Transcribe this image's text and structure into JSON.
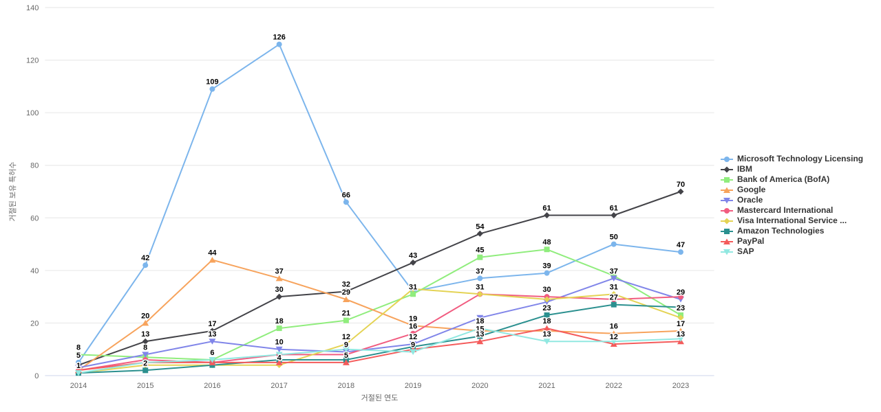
{
  "chart": {
    "y_axis_title": "거절된 보유 특허수",
    "x_axis_title": "거절된 연도",
    "y_tick_labels": [
      "0",
      "20",
      "40",
      "60",
      "80",
      "100",
      "120",
      "140"
    ],
    "x_tick_labels": [
      "2014",
      "2015",
      "2016",
      "2017",
      "2018",
      "2019",
      "2020",
      "2021",
      "2022",
      "2023"
    ],
    "grid_color": "#e6e6e6",
    "axis_line_color": "#ccd6eb",
    "tick_label_color": "#666666",
    "axis_title_color": "#666666",
    "data_label_color": "#000000",
    "legend_text_color": "#333333"
  },
  "chart_data": {
    "type": "line",
    "title": "",
    "xlabel": "거절된 연도",
    "ylabel": "거절된 보유 특허수",
    "ylim": [
      0,
      140
    ],
    "y_ticks": [
      0,
      20,
      40,
      60,
      80,
      100,
      120,
      140
    ],
    "grid": "horizontal",
    "legend_position": "right",
    "categories": [
      "2014",
      "2015",
      "2016",
      "2017",
      "2018",
      "2019",
      "2020",
      "2021",
      "2022",
      "2023"
    ],
    "series": [
      {
        "name": "Microsoft Technology Licensing",
        "color": "#7cb5ec",
        "marker": "circle",
        "values": [
          5,
          42,
          109,
          126,
          66,
          32,
          37,
          39,
          50,
          47
        ],
        "labeled": [
          1,
          1,
          1,
          1,
          1,
          0,
          1,
          1,
          1,
          1
        ]
      },
      {
        "name": "IBM",
        "color": "#434348",
        "marker": "diamond",
        "values": [
          4,
          13,
          17,
          30,
          32,
          43,
          54,
          61,
          61,
          70
        ],
        "labeled": [
          0,
          1,
          1,
          1,
          1,
          1,
          1,
          1,
          1,
          1
        ]
      },
      {
        "name": "Bank of America (BofA)",
        "color": "#90ed7d",
        "marker": "square",
        "values": [
          8,
          7,
          6,
          18,
          21,
          31,
          45,
          48,
          38,
          23
        ],
        "labeled": [
          1,
          0,
          1,
          1,
          1,
          1,
          1,
          1,
          0,
          1
        ]
      },
      {
        "name": "Google",
        "color": "#f7a35c",
        "marker": "triangle",
        "values": [
          2,
          20,
          44,
          37,
          29,
          19,
          17,
          17,
          16,
          17
        ],
        "labeled": [
          0,
          1,
          1,
          1,
          1,
          1,
          0,
          0,
          1,
          1
        ]
      },
      {
        "name": "Oracle",
        "color": "#8085e9",
        "marker": "triangle-down",
        "values": [
          3,
          8,
          13,
          10,
          9,
          12,
          22,
          28,
          37,
          29
        ],
        "labeled": [
          0,
          1,
          1,
          1,
          1,
          1,
          0,
          0,
          1,
          1
        ]
      },
      {
        "name": "Mastercard International",
        "color": "#f15c80",
        "marker": "circle",
        "values": [
          2,
          6,
          5,
          8,
          8,
          16,
          31,
          30,
          29,
          30
        ],
        "labeled": [
          0,
          0,
          0,
          0,
          0,
          1,
          1,
          1,
          0,
          0
        ]
      },
      {
        "name": "Visa International Service ...",
        "color": "#e4d354",
        "marker": "diamond",
        "values": [
          1,
          4,
          4,
          4,
          12,
          33,
          31,
          29,
          31,
          22
        ],
        "labeled": [
          0,
          0,
          0,
          1,
          1,
          0,
          0,
          0,
          1,
          0
        ]
      },
      {
        "name": "Amazon Technologies",
        "color": "#2b908f",
        "marker": "square",
        "values": [
          1,
          2,
          4,
          6,
          6,
          11,
          15,
          23,
          27,
          26
        ],
        "labeled": [
          1,
          1,
          0,
          0,
          0,
          0,
          1,
          1,
          1,
          0
        ]
      },
      {
        "name": "PayPal",
        "color": "#f45b5b",
        "marker": "triangle",
        "values": [
          2,
          5,
          5,
          5,
          5,
          10,
          13,
          18,
          12,
          13
        ],
        "labeled": [
          0,
          0,
          0,
          0,
          1,
          0,
          1,
          1,
          1,
          1
        ]
      },
      {
        "name": "SAP",
        "color": "#91e8e1",
        "marker": "triangle-down",
        "values": [
          1,
          5,
          6,
          8,
          10,
          9,
          18,
          13,
          13,
          14
        ],
        "labeled": [
          0,
          0,
          0,
          0,
          0,
          1,
          1,
          1,
          0,
          0
        ]
      }
    ]
  }
}
